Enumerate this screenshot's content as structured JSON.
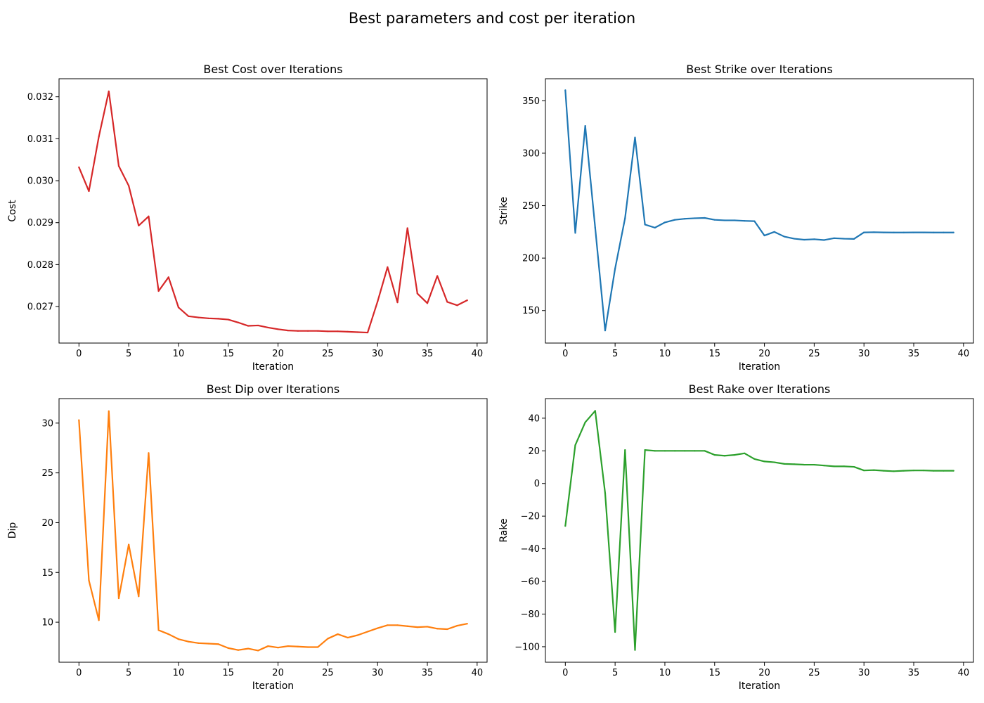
{
  "figure": {
    "suptitle": "Best parameters and cost per iteration"
  },
  "chart_data": [
    {
      "type": "line",
      "title": "Best Cost over Iterations",
      "xlabel": "Iteration",
      "ylabel": "Cost",
      "color": "#d62728",
      "xlim": [
        -2,
        41
      ],
      "ylim": [
        0.02613,
        0.03243
      ],
      "xticks": [
        0,
        5,
        10,
        15,
        20,
        25,
        30,
        35,
        40
      ],
      "yticks": [
        0.027,
        0.028,
        0.029,
        0.03,
        0.031,
        0.032
      ],
      "ytick_labels": [
        "0.027",
        "0.028",
        "0.029",
        "0.030",
        "0.031",
        "0.032"
      ],
      "grid": false,
      "x": [
        0,
        1,
        2,
        3,
        4,
        5,
        6,
        7,
        8,
        9,
        10,
        11,
        12,
        13,
        14,
        15,
        16,
        17,
        18,
        19,
        20,
        21,
        22,
        23,
        24,
        25,
        26,
        27,
        28,
        29,
        30,
        31,
        32,
        33,
        34,
        35,
        36,
        37,
        38,
        39
      ],
      "y": [
        0.03032,
        0.02975,
        0.03105,
        0.03213,
        0.03035,
        0.02988,
        0.02893,
        0.02915,
        0.02737,
        0.0277,
        0.02698,
        0.02677,
        0.02674,
        0.02672,
        0.02671,
        0.02669,
        0.02662,
        0.02654,
        0.02655,
        0.0265,
        0.02646,
        0.02643,
        0.02642,
        0.02642,
        0.02642,
        0.02641,
        0.02641,
        0.0264,
        0.02639,
        0.02638,
        0.02712,
        0.02794,
        0.0271,
        0.02887,
        0.02731,
        0.02708,
        0.02773,
        0.02711,
        0.02703,
        0.02715
      ]
    },
    {
      "type": "line",
      "title": "Best Strike over Iterations",
      "xlabel": "Iteration",
      "ylabel": "Strike",
      "color": "#1f77b4",
      "xlim": [
        -2,
        41
      ],
      "ylim": [
        119,
        371
      ],
      "xticks": [
        0,
        5,
        10,
        15,
        20,
        25,
        30,
        35,
        40
      ],
      "yticks": [
        150,
        200,
        250,
        300,
        350
      ],
      "ytick_labels": [
        "150",
        "200",
        "250",
        "300",
        "350"
      ],
      "grid": false,
      "x": [
        0,
        1,
        2,
        3,
        4,
        5,
        6,
        7,
        8,
        9,
        10,
        11,
        12,
        13,
        14,
        15,
        16,
        17,
        18,
        19,
        20,
        21,
        22,
        23,
        24,
        25,
        26,
        27,
        28,
        29,
        30,
        31,
        32,
        33,
        34,
        35,
        36,
        37,
        38,
        39
      ],
      "y": [
        360,
        224,
        326,
        229,
        131,
        190,
        238,
        315,
        232,
        229,
        234,
        236.5,
        237.5,
        238,
        238.3,
        236.5,
        236,
        236,
        235.5,
        235.2,
        221.5,
        225,
        220.5,
        218.5,
        217.5,
        218,
        217.2,
        219,
        218.5,
        218.3,
        224.5,
        224.7,
        224.5,
        224.4,
        224.4,
        224.5,
        224.5,
        224.4,
        224.4,
        224.4
      ]
    },
    {
      "type": "line",
      "title": "Best Dip over Iterations",
      "xlabel": "Iteration",
      "ylabel": "Dip",
      "color": "#ff7f0e",
      "xlim": [
        -2,
        41
      ],
      "ylim": [
        5.98,
        32.46
      ],
      "xticks": [
        0,
        5,
        10,
        15,
        20,
        25,
        30,
        35,
        40
      ],
      "yticks": [
        10,
        15,
        20,
        25,
        30
      ],
      "ytick_labels": [
        "10",
        "15",
        "20",
        "25",
        "30"
      ],
      "grid": false,
      "x": [
        0,
        1,
        2,
        3,
        4,
        5,
        6,
        7,
        8,
        9,
        10,
        11,
        12,
        13,
        14,
        15,
        16,
        17,
        18,
        19,
        20,
        21,
        22,
        23,
        24,
        25,
        26,
        27,
        28,
        29,
        30,
        31,
        32,
        33,
        34,
        35,
        36,
        37,
        38,
        39
      ],
      "y": [
        30.3,
        14.2,
        10.2,
        31.2,
        12.4,
        17.8,
        12.6,
        27.0,
        9.2,
        8.8,
        8.3,
        8.05,
        7.9,
        7.85,
        7.8,
        7.4,
        7.2,
        7.35,
        7.15,
        7.6,
        7.45,
        7.6,
        7.55,
        7.5,
        7.5,
        8.35,
        8.8,
        8.45,
        8.7,
        9.05,
        9.4,
        9.7,
        9.7,
        9.6,
        9.5,
        9.55,
        9.35,
        9.3,
        9.65,
        9.85
      ]
    },
    {
      "type": "line",
      "title": "Best Rake over Iterations",
      "xlabel": "Iteration",
      "ylabel": "Rake",
      "color": "#2ca02c",
      "xlim": [
        -2,
        41
      ],
      "ylim": [
        -109.5,
        52
      ],
      "xticks": [
        0,
        5,
        10,
        15,
        20,
        25,
        30,
        35,
        40
      ],
      "yticks": [
        -100,
        -80,
        -60,
        -40,
        -20,
        0,
        20,
        40
      ],
      "ytick_labels": [
        "−100",
        "−80",
        "−60",
        "−40",
        "−20",
        "0",
        "20",
        "40"
      ],
      "grid": false,
      "x": [
        0,
        1,
        2,
        3,
        4,
        5,
        6,
        7,
        8,
        9,
        10,
        11,
        12,
        13,
        14,
        15,
        16,
        17,
        18,
        19,
        20,
        21,
        22,
        23,
        24,
        25,
        26,
        27,
        28,
        29,
        30,
        31,
        32,
        33,
        34,
        35,
        36,
        37,
        38,
        39
      ],
      "y": [
        -26,
        23.5,
        37.5,
        44.5,
        -6,
        -91,
        20.5,
        -102,
        20.5,
        20,
        20,
        20,
        20,
        20,
        20,
        17.5,
        17,
        17.5,
        18.5,
        15,
        13.5,
        13,
        12,
        11.8,
        11.5,
        11.5,
        11,
        10.5,
        10.5,
        10.2,
        8,
        8.2,
        7.8,
        7.5,
        7.8,
        8,
        8,
        7.8,
        7.8,
        7.8
      ]
    }
  ]
}
